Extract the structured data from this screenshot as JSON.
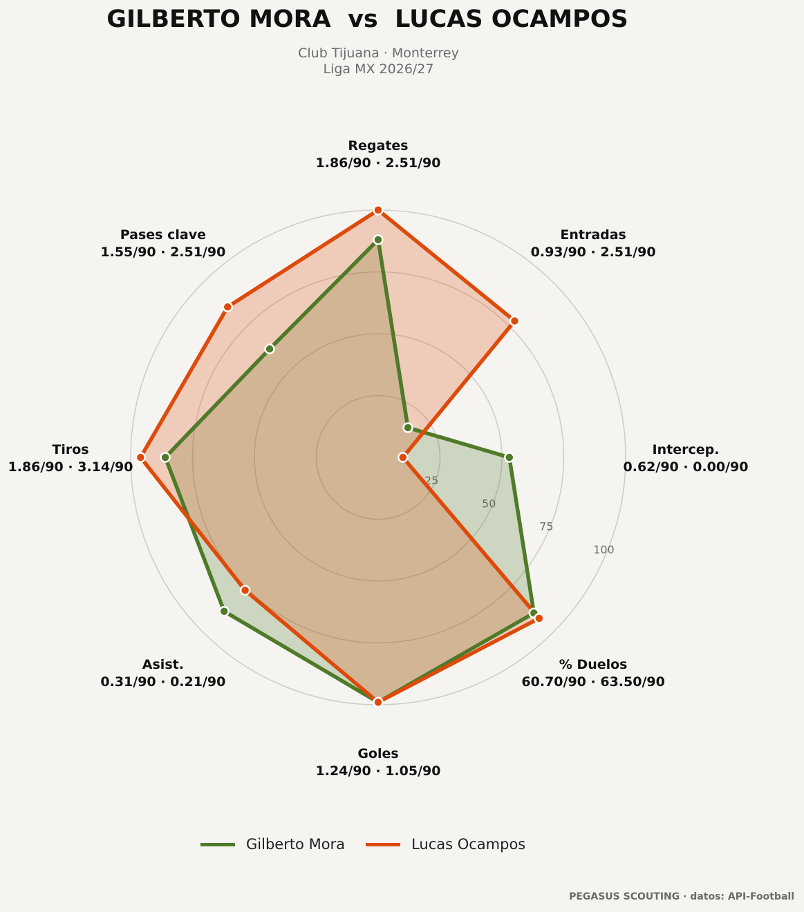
{
  "header": {
    "title": "GILBERTO MORA  vs  LUCAS OCAMPOS",
    "subtitle_line1": "Club Tijuana · Monterrey",
    "subtitle_line2": "Liga MX 2026/27"
  },
  "footer": {
    "credit": "PEGASUS SCOUTING · datos: API-Football"
  },
  "colors": {
    "series_1": "#4f7a28",
    "series_2": "#dd4a0a",
    "background": "#f5f4f1",
    "grid": "#cfcdc9"
  },
  "chart_data": {
    "type": "radar",
    "axes": [
      {
        "label": "Regates",
        "values_label": "1.86/90 · 2.51/90"
      },
      {
        "label": "Entradas",
        "values_label": "0.93/90 · 2.51/90"
      },
      {
        "label": "Intercep.",
        "values_label": "0.62/90 · 0.00/90"
      },
      {
        "label": "% Duelos",
        "values_label": "60.70/90 · 63.50/90"
      },
      {
        "label": "Goles",
        "values_label": "1.24/90 · 1.05/90"
      },
      {
        "label": "Asist.",
        "values_label": "0.31/90 · 0.21/90"
      },
      {
        "label": "Tiros",
        "values_label": "1.86/90 · 3.14/90"
      },
      {
        "label": "Pases clave",
        "values_label": "1.55/90 · 2.51/90"
      }
    ],
    "rlim": [
      0,
      100
    ],
    "rticks": [
      25,
      50,
      75,
      100
    ],
    "series": [
      {
        "name": "Gilberto Mora",
        "values": [
          88,
          17,
          53,
          89,
          99,
          88,
          86,
          62
        ]
      },
      {
        "name": "Lucas Ocampos",
        "values": [
          100,
          78,
          10,
          92,
          99,
          76,
          96,
          86
        ]
      }
    ]
  }
}
